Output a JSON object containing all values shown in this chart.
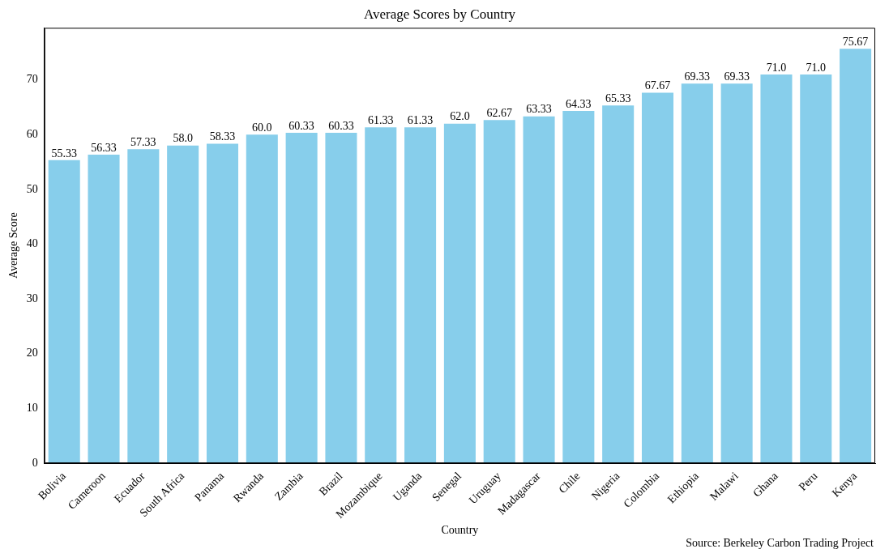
{
  "chart_data": {
    "type": "bar",
    "title": "Average Scores by Country",
    "xlabel": "Country",
    "ylabel": "Average Score",
    "categories": [
      "Bolivia",
      "Cameroon",
      "Ecuador",
      "South Africa",
      "Panama",
      "Rwanda",
      "Zambia",
      "Brazil",
      "Mozambique",
      "Uganda",
      "Senegal",
      "Uruguay",
      "Madagascar",
      "Chile",
      "Nigeria",
      "Colombia",
      "Ethiopia",
      "Malawi",
      "Ghana",
      "Peru",
      "Kenya"
    ],
    "values": [
      55.33,
      56.33,
      57.33,
      58.0,
      58.33,
      60.0,
      60.33,
      60.33,
      61.33,
      61.33,
      62.0,
      62.67,
      63.33,
      64.33,
      65.33,
      67.67,
      69.33,
      69.33,
      71.0,
      71.0,
      75.67
    ],
    "value_labels": [
      "55.33",
      "56.33",
      "57.33",
      "58.0",
      "58.33",
      "60.0",
      "60.33",
      "60.33",
      "61.33",
      "61.33",
      "62.0",
      "62.67",
      "63.33",
      "64.33",
      "65.33",
      "67.67",
      "69.33",
      "69.33",
      "71.0",
      "71.0",
      "75.67"
    ],
    "color": "#87ceeb",
    "ylim": [
      0,
      79.5
    ],
    "yticks": [
      0,
      10,
      20,
      30,
      40,
      50,
      60,
      70
    ],
    "annotations": [
      "Source: Berkeley Carbon Trading Project"
    ]
  }
}
